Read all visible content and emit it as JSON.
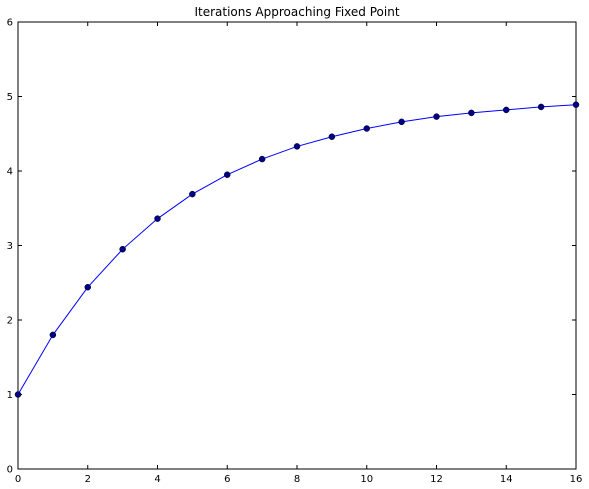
{
  "chart_data": {
    "type": "line",
    "title": "Iterations Approaching Fixed Point",
    "xlabel": "",
    "ylabel": "",
    "xlim": [
      0,
      16
    ],
    "ylim": [
      0,
      6
    ],
    "x_ticks": [
      0,
      2,
      4,
      6,
      8,
      10,
      12,
      14,
      16
    ],
    "y_ticks": [
      0,
      1,
      2,
      3,
      4,
      5,
      6
    ],
    "grid": false,
    "legend": "none",
    "series": [
      {
        "color": "#0000ff",
        "marker": "circle",
        "marker_color": "#00008b",
        "x": [
          0,
          1,
          2,
          3,
          4,
          5,
          6,
          7,
          8,
          9,
          10,
          11,
          12,
          13,
          14,
          15,
          16
        ],
        "values": [
          1.0,
          1.8,
          2.44,
          2.95,
          3.36,
          3.69,
          3.95,
          4.16,
          4.33,
          4.46,
          4.57,
          4.66,
          4.73,
          4.78,
          4.82,
          4.86,
          4.89
        ]
      }
    ]
  }
}
